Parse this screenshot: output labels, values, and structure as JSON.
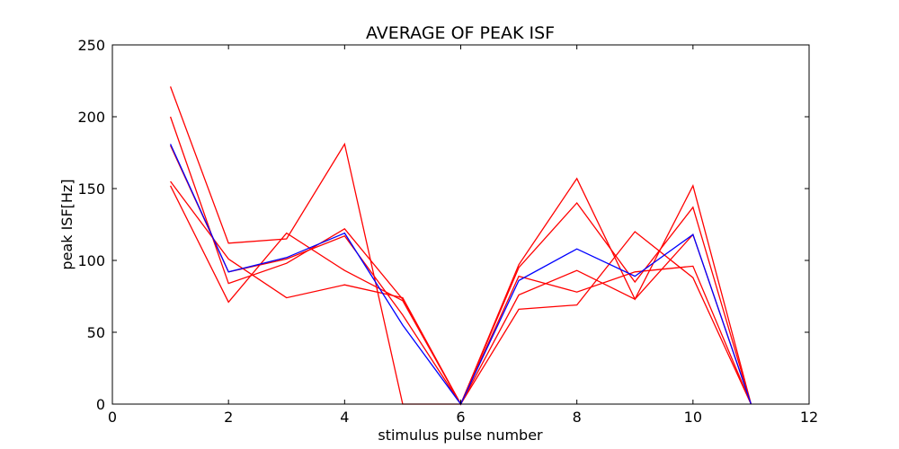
{
  "chart_data": {
    "type": "line",
    "title": "AVERAGE OF PEAK ISF",
    "xlabel": "stimulus pulse number",
    "ylabel": "peak ISF[Hz]",
    "xlim": [
      0,
      12
    ],
    "ylim": [
      0,
      250
    ],
    "xticks": [
      0,
      2,
      4,
      6,
      8,
      10,
      12
    ],
    "yticks": [
      0,
      50,
      100,
      150,
      200,
      250
    ],
    "grid": false,
    "x": [
      1,
      2,
      3,
      4,
      5,
      6,
      7,
      8,
      9,
      10,
      11
    ],
    "series": [
      {
        "color": "#ff0000",
        "values": [
          221,
          112,
          115,
          181,
          0,
          0,
          97,
          157,
          73,
          152,
          0
        ]
      },
      {
        "color": "#ff0000",
        "values": [
          200,
          84,
          98,
          122,
          73,
          0,
          95,
          140,
          85,
          137,
          0
        ]
      },
      {
        "color": "#ff0000",
        "values": [
          155,
          101,
          74,
          83,
          74,
          0,
          76,
          93,
          73,
          118,
          0
        ]
      },
      {
        "color": "#ff0000",
        "values": [
          152,
          71,
          119,
          93,
          72,
          0,
          66,
          69,
          120,
          88,
          0
        ]
      },
      {
        "color": "#ff0000",
        "values": [
          180,
          92,
          101,
          117,
          62,
          0,
          89,
          78,
          92,
          96,
          0
        ]
      },
      {
        "color": "#0000ff",
        "values": [
          181,
          92,
          102,
          119,
          55,
          0,
          86,
          108,
          89,
          118,
          0
        ]
      }
    ]
  }
}
